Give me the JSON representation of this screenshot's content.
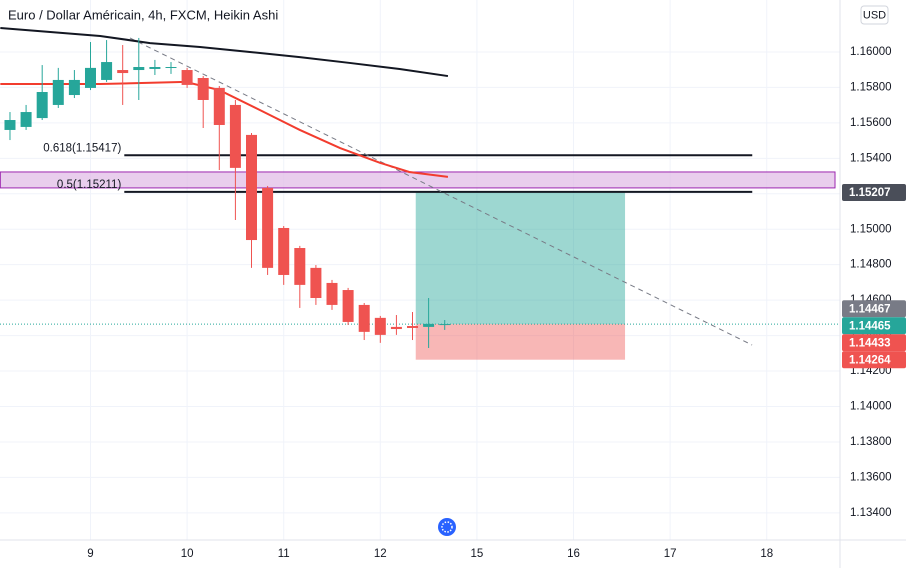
{
  "chart_data": {
    "type": "candlestick",
    "title": "Euro / Dollar Américain, 4h, FXCM, Heikin Ashi",
    "currency": "USD",
    "x": [
      0,
      1,
      2,
      3,
      4,
      5,
      6,
      7,
      8,
      9,
      10,
      11,
      12,
      13,
      14,
      15,
      16,
      17,
      18,
      19,
      20,
      21,
      22,
      23,
      24,
      25,
      26,
      27
    ],
    "open": [
      1.1556,
      1.15577,
      1.15627,
      1.15701,
      1.15757,
      1.15797,
      1.15842,
      1.15898,
      1.15898,
      1.15904,
      1.1591,
      1.15898,
      1.15853,
      1.15797,
      1.15701,
      1.15532,
      1.15233,
      1.15007,
      1.14894,
      1.14782,
      1.14697,
      1.14657,
      1.14573,
      1.145,
      1.14449,
      1.14454,
      1.14449,
      1.14465
    ],
    "high": [
      1.15661,
      1.15701,
      1.15926,
      1.1591,
      1.15898,
      1.16056,
      1.16067,
      1.16039,
      1.16079,
      1.15955,
      1.15943,
      1.1591,
      1.15864,
      1.15808,
      1.15729,
      1.15543,
      1.15244,
      1.15018,
      1.14906,
      1.14798,
      1.14714,
      1.14669,
      1.14584,
      1.14511,
      1.14516,
      1.14533,
      1.14612,
      1.14488
    ],
    "low": [
      1.15503,
      1.1556,
      1.15616,
      1.15684,
      1.1574,
      1.15785,
      1.15831,
      1.15701,
      1.15729,
      1.1587,
      1.15876,
      1.15797,
      1.15571,
      1.15334,
      1.15052,
      1.14782,
      1.14742,
      1.14686,
      1.14556,
      1.14573,
      1.14545,
      1.1446,
      1.14375,
      1.14359,
      1.14404,
      1.14375,
      1.1433,
      1.14432
    ],
    "close": [
      1.15616,
      1.15661,
      1.15774,
      1.15842,
      1.15842,
      1.1591,
      1.15943,
      1.15881,
      1.15915,
      1.15915,
      1.15915,
      1.15814,
      1.15729,
      1.15588,
      1.15346,
      1.14939,
      1.14782,
      1.14742,
      1.14686,
      1.14612,
      1.14573,
      1.14477,
      1.14421,
      1.14404,
      1.14437,
      1.14443,
      1.14466,
      1.14465
    ],
    "up_color": "#26a69a",
    "down_color": "#ef5350",
    "xlim": [
      -0.62,
      51.55
    ],
    "xticks": [
      {
        "value": 5,
        "label": "9"
      },
      {
        "value": 11,
        "label": "10"
      },
      {
        "value": 17,
        "label": "11"
      },
      {
        "value": 23,
        "label": "12"
      },
      {
        "value": 29,
        "label": "15"
      },
      {
        "value": 35,
        "label": "16"
      },
      {
        "value": 41,
        "label": "17"
      },
      {
        "value": 47,
        "label": "18"
      }
    ],
    "ylim": [
      1.13247,
      1.16293
    ],
    "yticks": [
      {
        "value": 1.134,
        "label": "1.13400"
      },
      {
        "value": 1.136,
        "label": "1.13600"
      },
      {
        "value": 1.138,
        "label": "1.13800"
      },
      {
        "value": 1.14,
        "label": "1.14000"
      },
      {
        "value": 1.142,
        "label": "1.14200"
      },
      {
        "value": 1.144,
        "label": "1.14400"
      },
      {
        "value": 1.146,
        "label": "1.14600"
      },
      {
        "value": 1.148,
        "label": "1.14800"
      },
      {
        "value": 1.15,
        "label": "1.15000"
      },
      {
        "value": 1.152,
        "label": "1.15200"
      },
      {
        "value": 1.154,
        "label": "1.15400"
      },
      {
        "value": 1.156,
        "label": "1.15600"
      },
      {
        "value": 1.158,
        "label": "1.15800"
      },
      {
        "value": 1.16,
        "label": "1.16000"
      }
    ],
    "grid": true,
    "moving_averages": [
      {
        "color": "#f23c2e",
        "x": [
          -0.6,
          5.6,
          10.9,
          13,
          15.5,
          18,
          20.5,
          23,
          24.8,
          27.2
        ],
        "values": [
          1.15819,
          1.15819,
          1.15831,
          1.15785,
          1.15673,
          1.1556,
          1.15458,
          1.15374,
          1.15323,
          1.15295
        ]
      },
      {
        "color": "#131722",
        "x": [
          -0.6,
          5.6,
          8.7,
          11.8,
          14.9,
          18,
          21.1,
          24.2,
          27.2
        ],
        "values": [
          1.16135,
          1.1609,
          1.1605,
          1.16028,
          1.16,
          1.15971,
          1.15938,
          1.15904,
          1.15864
        ]
      }
    ],
    "fib_x": [
      7.1,
      46.1
    ],
    "fib_levels": [
      {
        "label": "0.618(1.15417)",
        "value": 1.15417
      },
      {
        "label": "0.5(1.15211)",
        "value": 1.15211
      }
    ],
    "zone": {
      "x": [
        -0.6,
        51.24
      ],
      "values": [
        1.15323,
        1.15233
      ],
      "color": "#e1bee7"
    },
    "trendline": {
      "x": [
        7.45,
        46.09
      ],
      "values": [
        1.16079,
        1.14347
      ]
    },
    "position": {
      "x": [
        25.2,
        38.2
      ],
      "entry": 1.14465,
      "target": 1.15207,
      "stop": 1.14264
    },
    "price_tags": [
      {
        "value": 1.15207,
        "color": "#4a4e59"
      },
      {
        "value": 1.14467,
        "color": "#787b86"
      },
      {
        "value": 1.14465,
        "color": "#26a69a"
      },
      {
        "value": 1.14433,
        "color": "#ef5350"
      },
      {
        "value": 1.14264,
        "color": "#ef5350"
      }
    ]
  }
}
